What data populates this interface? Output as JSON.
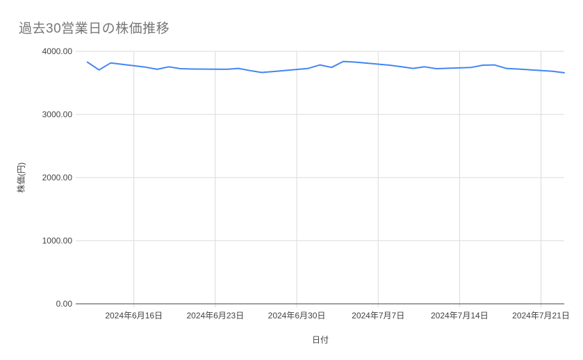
{
  "page": {
    "background": "#ffffff"
  },
  "chart_data": {
    "type": "line",
    "title": "過去30営業日の株価推移",
    "xlabel": "日付",
    "ylabel": "株価(円)",
    "ylim": [
      0,
      4000
    ],
    "x_domain": [
      "2024-06-11",
      "2024-07-23"
    ],
    "grid": true,
    "legend": "none",
    "colors": {
      "title": "#757575",
      "line": "#4285f4",
      "grid": "#dadada",
      "axis": "#424242",
      "labels": "#424242"
    },
    "y_ticks": [
      {
        "value": 4000,
        "label": "4000.00"
      },
      {
        "value": 3000,
        "label": "3000.00"
      },
      {
        "value": 2000,
        "label": "2000.00"
      },
      {
        "value": 1000,
        "label": "1000.00"
      },
      {
        "value": 0,
        "label": "0.00"
      }
    ],
    "x_ticks": [
      {
        "date": "2024-06-16",
        "label": "2024年6月16日"
      },
      {
        "date": "2024-06-23",
        "label": "2024年6月23日"
      },
      {
        "date": "2024-06-30",
        "label": "2024年6月30日"
      },
      {
        "date": "2024-07-07",
        "label": "2024年7月7日"
      },
      {
        "date": "2024-07-14",
        "label": "2024年7月14日"
      },
      {
        "date": "2024-07-21",
        "label": "2024年7月21日"
      }
    ],
    "series": [
      {
        "name": "株価",
        "dates": [
          "2024-06-12",
          "2024-06-13",
          "2024-06-14",
          "2024-06-17",
          "2024-06-18",
          "2024-06-19",
          "2024-06-20",
          "2024-06-21",
          "2024-06-24",
          "2024-06-25",
          "2024-06-26",
          "2024-06-27",
          "2024-06-28",
          "2024-07-01",
          "2024-07-02",
          "2024-07-03",
          "2024-07-04",
          "2024-07-05",
          "2024-07-08",
          "2024-07-09",
          "2024-07-10",
          "2024-07-11",
          "2024-07-12",
          "2024-07-15",
          "2024-07-16",
          "2024-07-17",
          "2024-07-18",
          "2024-07-19",
          "2024-07-22",
          "2024-07-23"
        ],
        "values": [
          3830,
          3705,
          3815,
          3750,
          3715,
          3755,
          3725,
          3720,
          3715,
          3730,
          3695,
          3665,
          3680,
          3730,
          3785,
          3745,
          3840,
          3830,
          3780,
          3755,
          3730,
          3755,
          3725,
          3745,
          3780,
          3785,
          3730,
          3720,
          3685,
          3660
        ]
      }
    ]
  }
}
